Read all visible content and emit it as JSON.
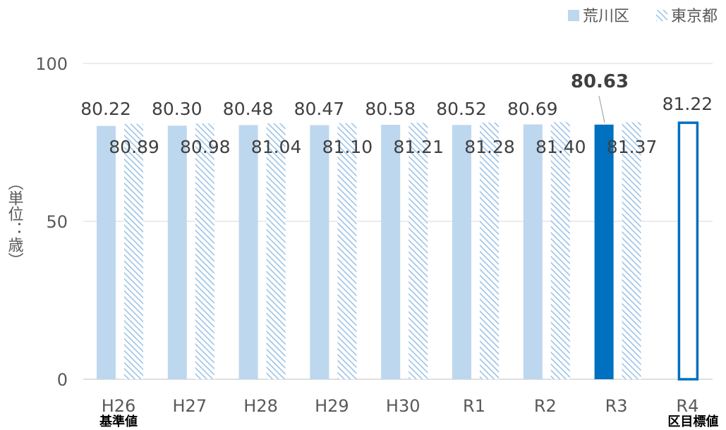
{
  "chart_data": {
    "type": "bar",
    "legend": {
      "position": "top-right",
      "items": [
        {
          "label": "荒川区",
          "pattern": "solid"
        },
        {
          "label": "東京都",
          "pattern": "hatched"
        }
      ]
    },
    "ylabel": "（単位：歳）",
    "ylim": [
      0,
      100
    ],
    "yticks": [
      0,
      50,
      100
    ],
    "grid": true,
    "categories": [
      "H26",
      "H27",
      "H28",
      "H29",
      "H30",
      "R1",
      "R2",
      "R3",
      "R4"
    ],
    "series": [
      {
        "name": "荒川区",
        "values": [
          80.22,
          80.3,
          80.48,
          80.47,
          80.58,
          80.52,
          80.69,
          80.63,
          null
        ],
        "labels": [
          "80.22",
          "80.30",
          "80.48",
          "80.47",
          "80.58",
          "80.52",
          "80.69",
          "80.63",
          ""
        ],
        "highlight_index": 7
      },
      {
        "name": "東京都",
        "values": [
          80.89,
          80.98,
          81.04,
          81.1,
          81.21,
          81.28,
          81.4,
          81.37,
          null
        ],
        "labels": [
          "80.89",
          "80.98",
          "81.04",
          "81.10",
          "81.21",
          "81.28",
          "81.40",
          "81.37",
          ""
        ]
      }
    ],
    "target": {
      "category": "R4",
      "value": 81.22,
      "label": "81.22",
      "caption": "区目標値"
    },
    "baseline_caption": {
      "category": "H26",
      "text": "基準値"
    }
  },
  "colors": {
    "light_bar": "#bdd7ee",
    "highlight_bar": "#0070c0",
    "hatch": "#9dc3e6",
    "grid": "#d9d9d9",
    "text": "#404040",
    "axis_text": "#595959"
  }
}
